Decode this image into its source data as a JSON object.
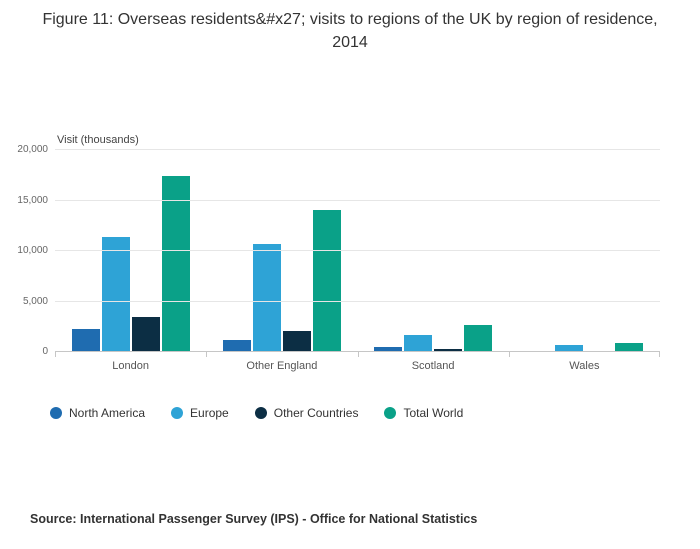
{
  "chart": {
    "title": "Figure 11: Overseas residents&#x27; visits to regions of the UK by region of residence, 2014",
    "ylabel": "Visit (thousands)",
    "source": "Source: International Passenger Survey (IPS) - Office for National Statistics"
  },
  "chart_data": {
    "type": "bar",
    "title": "Figure 11: Overseas residents&#x27; visits to regions of the UK by region of residence, 2014",
    "xlabel": "",
    "ylabel": "Visit (thousands)",
    "ylim": [
      0,
      20000
    ],
    "grid": true,
    "legend_position": "bottom",
    "yticks": [
      {
        "value": 0,
        "label": "0"
      },
      {
        "value": 5000,
        "label": "5,000"
      },
      {
        "value": 10000,
        "label": "10,000"
      },
      {
        "value": 15000,
        "label": "15,000"
      },
      {
        "value": 20000,
        "label": "20,000"
      }
    ],
    "categories": [
      "London",
      "Other England",
      "Scotland",
      "Wales"
    ],
    "series": [
      {
        "name": "North America",
        "color": "#1f6cb0",
        "values": [
          2300,
          1200,
          450,
          100
        ]
      },
      {
        "name": "Europe",
        "color": "#2ea3d6",
        "values": [
          11400,
          10700,
          1700,
          650
        ]
      },
      {
        "name": "Other Countries",
        "color": "#0c2e44",
        "values": [
          3500,
          2050,
          300,
          100
        ]
      },
      {
        "name": "Total World",
        "color": "#0aa188",
        "values": [
          17400,
          14100,
          2650,
          900
        ]
      }
    ]
  }
}
